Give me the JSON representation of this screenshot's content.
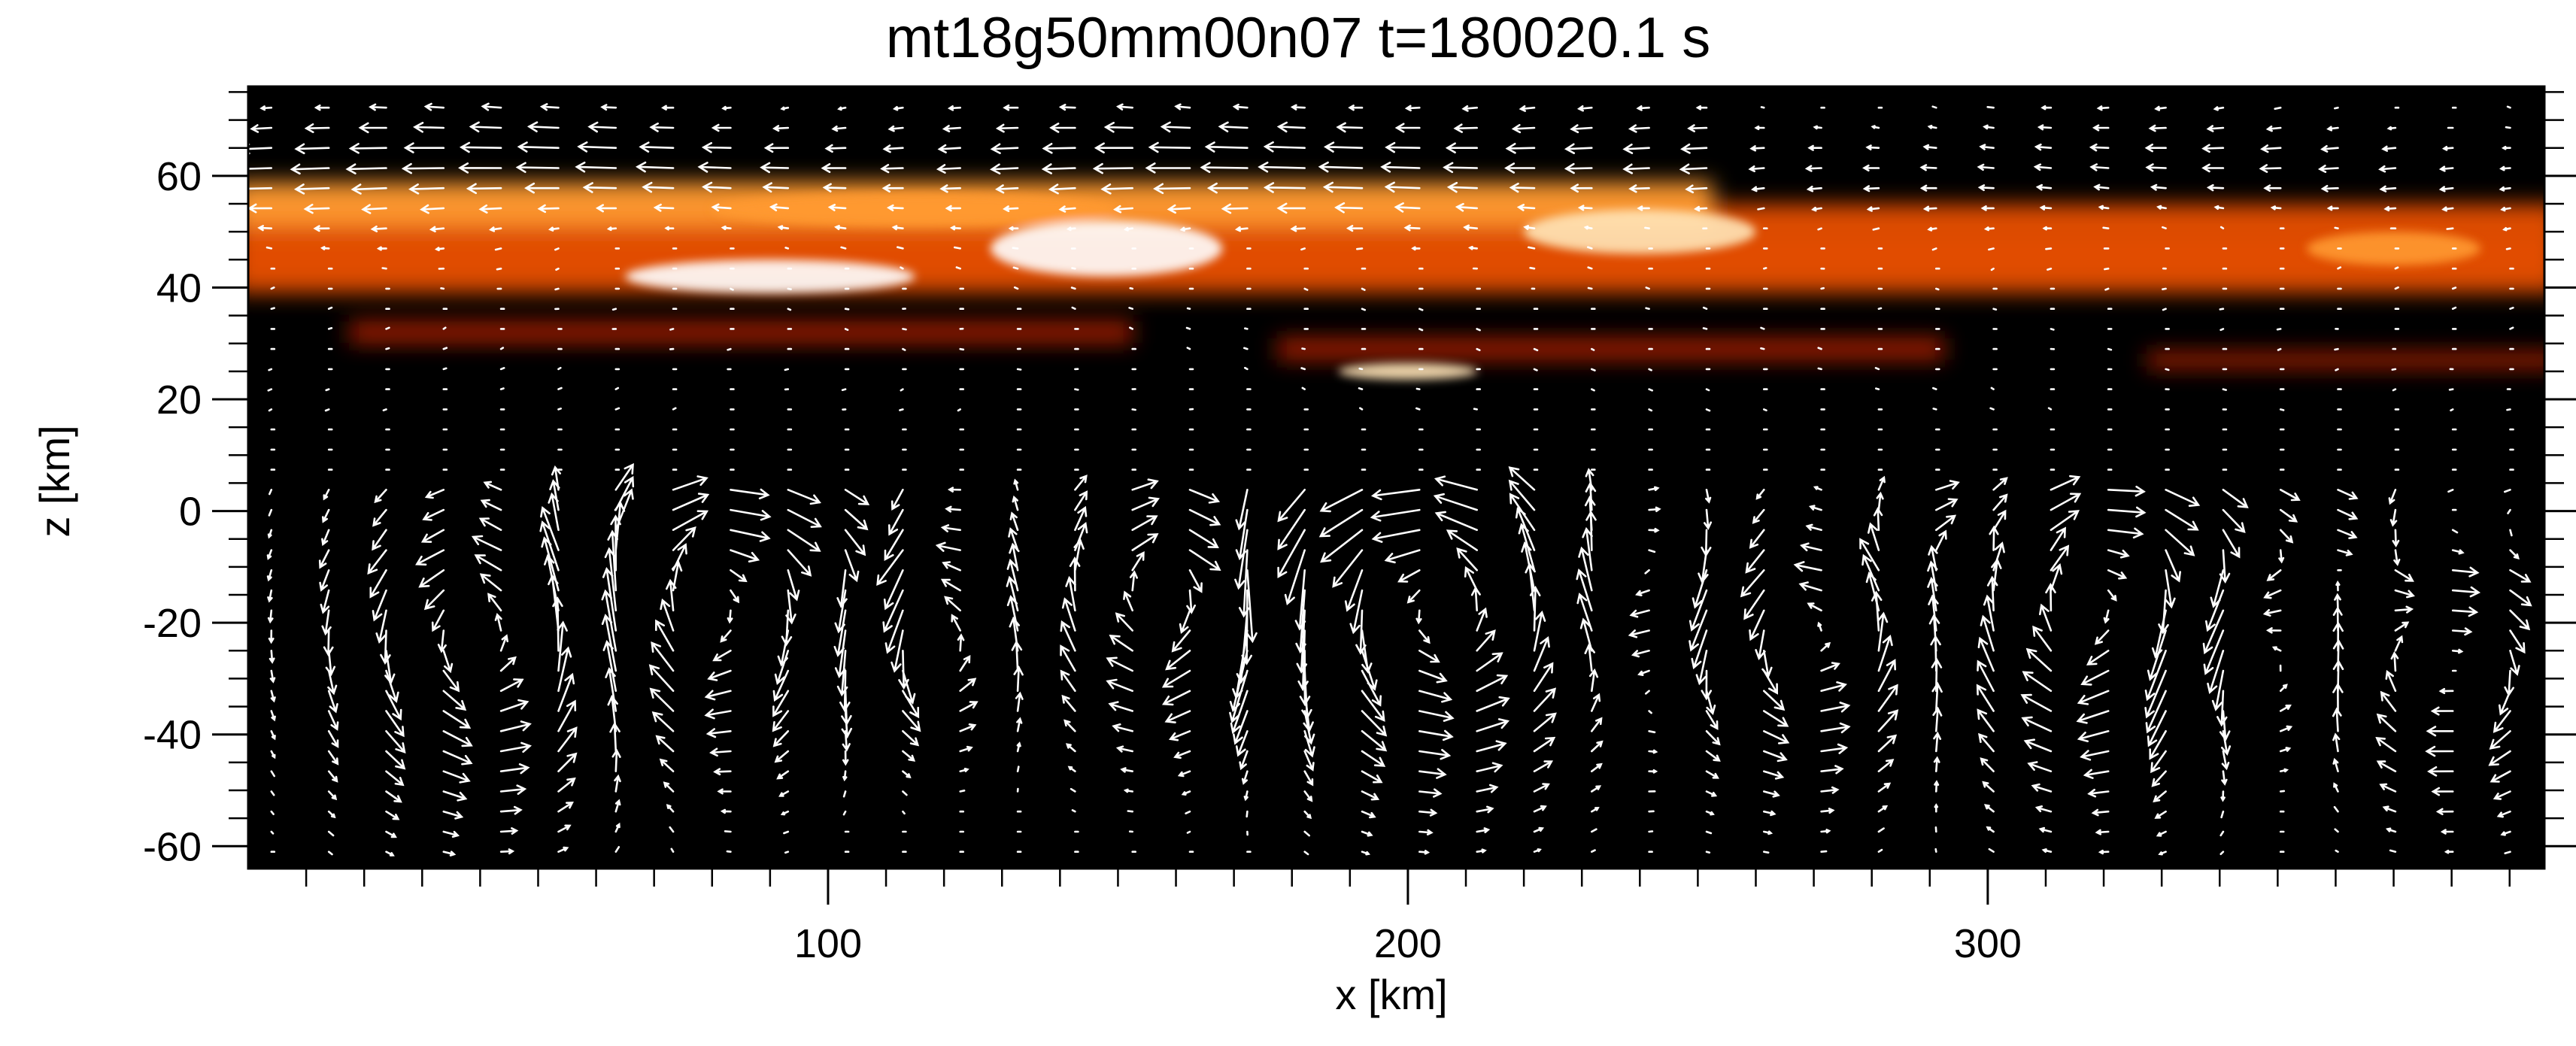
{
  "chart_data": {
    "type": "heatmap",
    "title": "mt18g50mm00n07  t=180020.1 s",
    "xlabel": "x [km]",
    "ylabel": "z [km]",
    "xlim": [
      0,
      396
    ],
    "ylim": [
      -64,
      76
    ],
    "x_ticks": [
      100,
      200,
      300
    ],
    "y_ticks": [
      -60,
      -40,
      -20,
      0,
      20,
      40,
      60
    ],
    "x_minor_step": 10,
    "y_minor_step": 5,
    "grid": false,
    "legend": "none",
    "colormap": [
      "#000000",
      "#3a0800",
      "#a01e00",
      "#e85000",
      "#ff9a30",
      "#ffe6b8",
      "#ffffff"
    ],
    "heat_bands": [
      {
        "x_from": 0,
        "x_to": 396,
        "z_center": 50,
        "z_halfwidth": 5,
        "intensity": 0.55
      },
      {
        "x_from": 0,
        "x_to": 396,
        "z_center": 43,
        "z_halfwidth": 4,
        "intensity": 0.5
      },
      {
        "x_from": 0,
        "x_to": 250,
        "z_center": 55,
        "z_halfwidth": 4,
        "intensity": 0.6
      },
      {
        "x_from": 20,
        "x_to": 150,
        "z_center": 32,
        "z_halfwidth": 2,
        "intensity": 0.4
      },
      {
        "x_from": 180,
        "x_to": 290,
        "z_center": 29,
        "z_halfwidth": 2,
        "intensity": 0.35
      },
      {
        "x_from": 330,
        "x_to": 396,
        "z_center": 27,
        "z_halfwidth": 1.5,
        "intensity": 0.4
      }
    ],
    "hot_spots": [
      {
        "x": 90,
        "z": 42,
        "rx": 25,
        "rz": 3,
        "intensity": 1.0
      },
      {
        "x": 148,
        "z": 47,
        "rx": 20,
        "rz": 5,
        "intensity": 0.95
      },
      {
        "x": 115,
        "z": 54,
        "rx": 35,
        "rz": 3,
        "intensity": 0.7
      },
      {
        "x": 240,
        "z": 50,
        "rx": 20,
        "rz": 4,
        "intensity": 0.75
      },
      {
        "x": 200,
        "z": 25,
        "rx": 12,
        "rz": 1.5,
        "intensity": 0.85
      },
      {
        "x": 370,
        "z": 47,
        "rx": 15,
        "rz": 3,
        "intensity": 0.7
      }
    ],
    "vector_field": {
      "arrow_color": "#ffffff",
      "x_step": 9.9,
      "z_step": 3.6,
      "jet": {
        "z_center": 62,
        "z_halfwidth": 10,
        "x_from": 0,
        "x_to": 260,
        "direction": -1
      },
      "cells": [
        {
          "x": 44,
          "z": -22,
          "r": 26,
          "spin": 1
        },
        {
          "x": 75,
          "z": -18,
          "r": 24,
          "spin": -1
        },
        {
          "x": 117,
          "z": -24,
          "r": 16,
          "spin": 1
        },
        {
          "x": 160,
          "z": -15,
          "r": 22,
          "spin": -1
        },
        {
          "x": 205,
          "z": -18,
          "r": 26,
          "spin": 1
        },
        {
          "x": 240,
          "z": -12,
          "r": 16,
          "spin": -1
        },
        {
          "x": 270,
          "z": -22,
          "r": 22,
          "spin": 1
        },
        {
          "x": 320,
          "z": -18,
          "r": 26,
          "spin": -1
        },
        {
          "x": 345,
          "z": -26,
          "r": 18,
          "spin": 1
        },
        {
          "x": 380,
          "z": -28,
          "r": 20,
          "spin": -1
        }
      ],
      "downflows": [
        112,
        172,
        295,
        368
      ]
    }
  }
}
